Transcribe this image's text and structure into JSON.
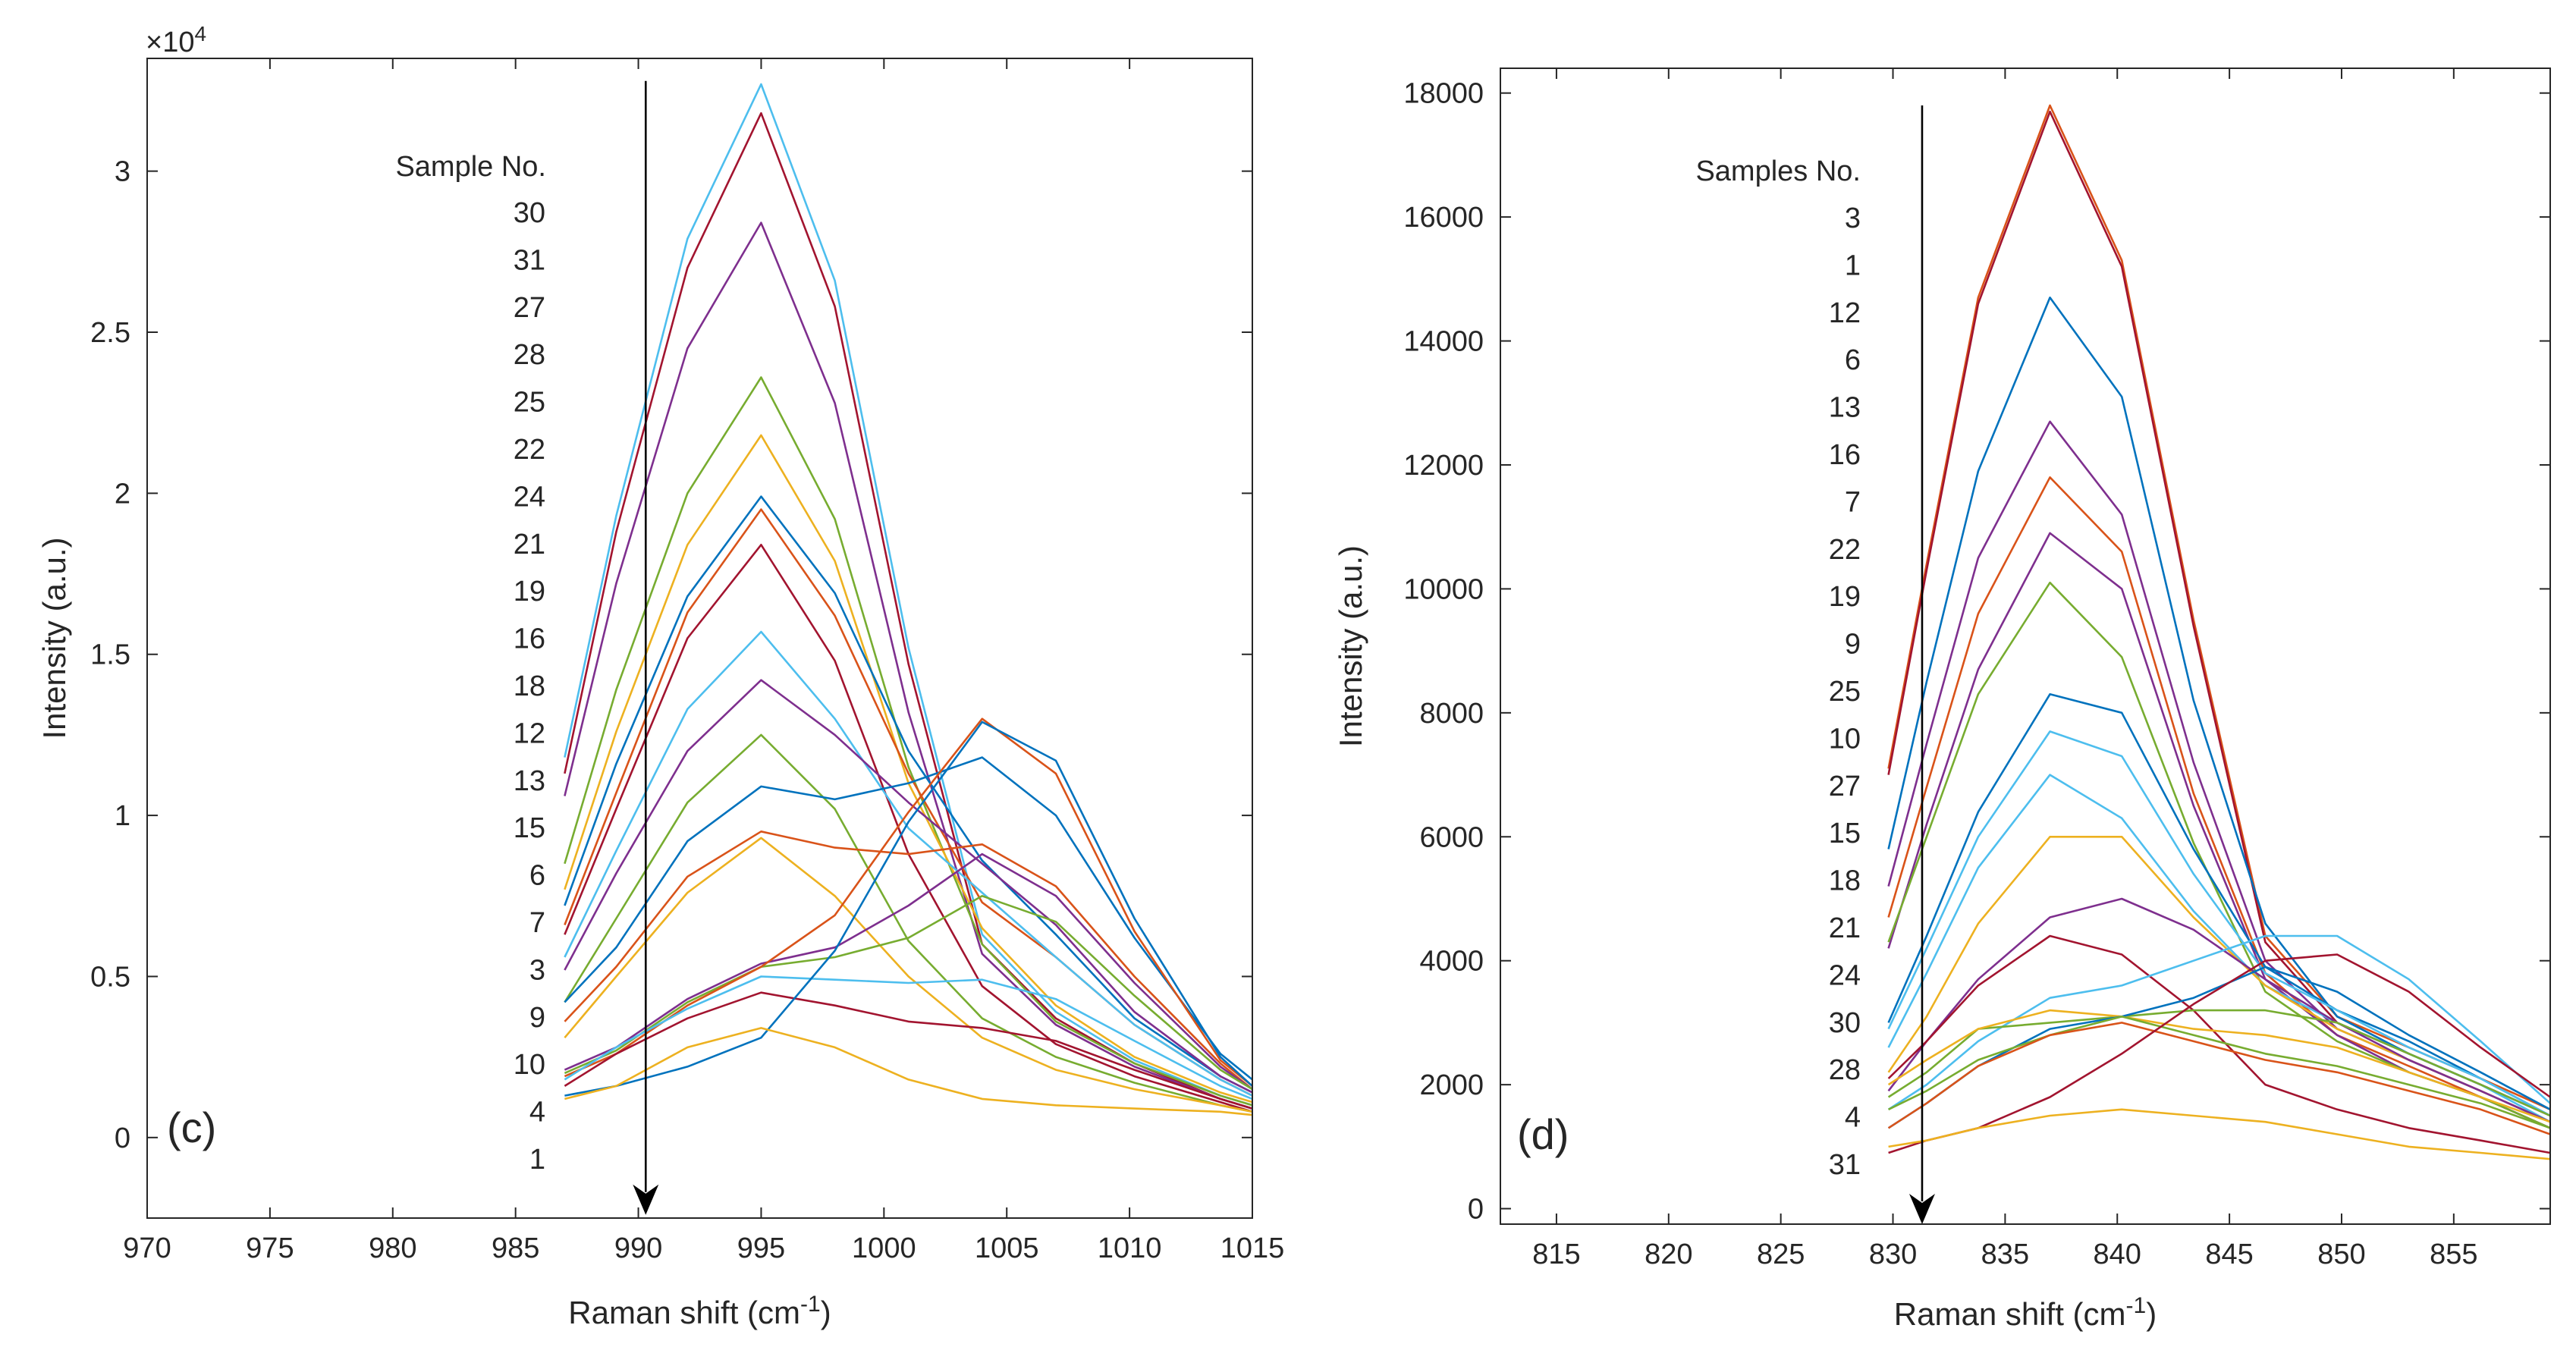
{
  "colors": [
    "#0072BD",
    "#D95319",
    "#EDB120",
    "#7E2F8E",
    "#77AC30",
    "#4DBEEE",
    "#A2142F"
  ],
  "chart_data": [
    {
      "panel_label": "(c)",
      "type": "line",
      "title": "",
      "xlabel_main": "Raman shift (cm",
      "xlabel_sup": "-1",
      "xlabel_close": ")",
      "ylabel": "Intensity (a.u.)",
      "y_exponent_prefix": "×10",
      "y_exponent_power": "4",
      "xlim": [
        970,
        1015
      ],
      "ylim": [
        -2500,
        33500
      ],
      "xticks": [
        970,
        975,
        980,
        985,
        990,
        995,
        1000,
        1005,
        1010,
        1015
      ],
      "xtick_labels": [
        "970",
        "975",
        "980",
        "985",
        "990",
        "995",
        "1000",
        "1005",
        "1010",
        "1015"
      ],
      "yticks": [
        0,
        5000,
        10000,
        15000,
        20000,
        25000,
        30000
      ],
      "ytick_labels": [
        "0",
        "0.5",
        "1",
        "1.5",
        "2",
        "2.5",
        "3"
      ],
      "x": [
        987,
        989.1,
        992,
        995,
        998,
        1001,
        1004,
        1007,
        1010.2,
        1013.7,
        1015
      ],
      "arrow": {
        "x": 990.3,
        "y_start": 32800,
        "y_end": -2400
      },
      "legend_title": "Sample No.",
      "legend_entries": [
        "30",
        "31",
        "27",
        "28",
        "25",
        "22",
        "24",
        "21",
        "19",
        "16",
        "18",
        "12",
        "13",
        "15",
        "6",
        "7",
        "3",
        "9",
        "10",
        "4",
        "1"
      ],
      "series": [
        {
          "name": "30",
          "color": "#4DBEEE",
          "values": [
            11800,
            19300,
            27900,
            32700,
            26600,
            15200,
            6300,
            3900,
            2400,
            1300,
            1000
          ]
        },
        {
          "name": "31",
          "color": "#A2142F",
          "values": [
            11300,
            18800,
            27000,
            31800,
            25800,
            14700,
            6000,
            3700,
            2300,
            1200,
            900
          ]
        },
        {
          "name": "27",
          "color": "#7E2F8E",
          "values": [
            10600,
            17200,
            24500,
            28400,
            22800,
            13200,
            5700,
            3500,
            2200,
            1200,
            900
          ]
        },
        {
          "name": "28",
          "color": "#77AC30",
          "values": [
            8500,
            13900,
            20000,
            23600,
            19200,
            11500,
            6000,
            3600,
            2300,
            1300,
            1000
          ]
        },
        {
          "name": "25",
          "color": "#EDB120",
          "values": [
            7700,
            12600,
            18400,
            21800,
            17900,
            11000,
            6500,
            4100,
            2500,
            1400,
            1100
          ]
        },
        {
          "name": "22",
          "color": "#0072BD",
          "values": [
            7200,
            11600,
            16800,
            19900,
            16900,
            12000,
            8600,
            6300,
            3700,
            1900,
            1400
          ]
        },
        {
          "name": "24",
          "color": "#D95319",
          "values": [
            6600,
            10700,
            16300,
            19500,
            16200,
            11300,
            7300,
            5600,
            3500,
            1800,
            1300
          ]
        },
        {
          "name": "21",
          "color": "#A2142F",
          "values": [
            6300,
            10200,
            15500,
            18400,
            14800,
            8800,
            4700,
            2900,
            1900,
            1100,
            800
          ]
        },
        {
          "name": "19",
          "color": "#4DBEEE",
          "values": [
            5600,
            8900,
            13300,
            15700,
            13000,
            9600,
            7600,
            5600,
            3500,
            1800,
            1300
          ]
        },
        {
          "name": "16",
          "color": "#7E2F8E",
          "values": [
            5200,
            8200,
            12000,
            14200,
            12500,
            10400,
            8500,
            6600,
            3900,
            1900,
            1400
          ]
        },
        {
          "name": "18",
          "color": "#77AC30",
          "values": [
            4200,
            6800,
            10400,
            12500,
            10200,
            6100,
            3700,
            2500,
            1700,
            1000,
            800
          ]
        },
        {
          "name": "12",
          "color": "#0072BD",
          "values": [
            4200,
            5900,
            9200,
            10900,
            10500,
            11000,
            11800,
            10000,
            6200,
            2600,
            1800
          ]
        },
        {
          "name": "13",
          "color": "#D95319",
          "values": [
            3600,
            5300,
            8100,
            9500,
            9000,
            8800,
            9100,
            7800,
            5000,
            2300,
            1500
          ]
        },
        {
          "name": "15",
          "color": "#EDB120",
          "values": [
            3100,
            5000,
            7600,
            9300,
            7500,
            5000,
            3100,
            2100,
            1500,
            1000,
            800
          ]
        },
        {
          "name": "6",
          "color": "#7E2F8E",
          "values": [
            2100,
            2800,
            4300,
            5400,
            5900,
            7200,
            8800,
            7500,
            4800,
            2200,
            1500
          ]
        },
        {
          "name": "7",
          "color": "#77AC30",
          "values": [
            2000,
            2700,
            4200,
            5300,
            5600,
            6200,
            7500,
            6700,
            4400,
            2100,
            1500
          ]
        },
        {
          "name": "3",
          "color": "#D95319",
          "values": [
            1900,
            2600,
            4100,
            5300,
            6900,
            10100,
            13000,
            11300,
            6400,
            2400,
            1600
          ]
        },
        {
          "name": "9",
          "color": "#4DBEEE",
          "values": [
            1800,
            2800,
            4000,
            5000,
            4900,
            4800,
            4900,
            4300,
            3000,
            1600,
            1200
          ]
        },
        {
          "name": "10",
          "color": "#A2142F",
          "values": [
            1600,
            2600,
            3700,
            4500,
            4100,
            3600,
            3400,
            3000,
            2100,
            1200,
            900
          ]
        },
        {
          "name": "4",
          "color": "#0072BD",
          "values": [
            1300,
            1600,
            2200,
            3100,
            5800,
            9800,
            12900,
            11700,
            6800,
            2500,
            1600
          ]
        },
        {
          "name": "1",
          "color": "#EDB120",
          "values": [
            1200,
            1600,
            2800,
            3400,
            2800,
            1800,
            1200,
            1000,
            900,
            800,
            700
          ]
        }
      ]
    },
    {
      "panel_label": "(d)",
      "type": "line",
      "title": "",
      "xlabel_main": "Raman shift (cm",
      "xlabel_sup": "-1",
      "xlabel_close": ")",
      "ylabel": "Intensity (a.u.)",
      "xlim": [
        812.5,
        859.3
      ],
      "ylim": [
        -250,
        18400
      ],
      "xticks": [
        815,
        820,
        825,
        830,
        835,
        840,
        845,
        850,
        855
      ],
      "xtick_labels": [
        "815",
        "820",
        "825",
        "830",
        "835",
        "840",
        "845",
        "850",
        "855"
      ],
      "yticks": [
        0,
        2000,
        4000,
        6000,
        8000,
        10000,
        12000,
        14000,
        16000,
        18000
      ],
      "ytick_labels": [
        "0",
        "2000",
        "4000",
        "6000",
        "8000",
        "10000",
        "12000",
        "14000",
        "16000",
        "18000"
      ],
      "x": [
        829.8,
        831.5,
        833.8,
        837,
        840.2,
        843.4,
        846.6,
        849.8,
        853,
        856.2,
        859.3
      ],
      "arrow": {
        "x": 831.3,
        "y_start": 17800,
        "y_end": -250
      },
      "legend_title": "Samples No.",
      "legend_entries": [
        "3",
        "1",
        "12",
        "6",
        "13",
        "16",
        "7",
        "22",
        "19",
        "9",
        "25",
        "10",
        "27",
        "15",
        "18",
        "21",
        "24",
        "30",
        "28",
        "4",
        "31"
      ],
      "series": [
        {
          "name": "3",
          "color": "#D95319",
          "values": [
            7100,
            10400,
            14700,
            17800,
            15300,
            9500,
            4400,
            3100,
            2600,
            2100,
            1600
          ]
        },
        {
          "name": "1",
          "color": "#A2142F",
          "values": [
            7000,
            10300,
            14600,
            17700,
            15200,
            9400,
            4300,
            3000,
            2500,
            2000,
            1500
          ]
        },
        {
          "name": "12",
          "color": "#0072BD",
          "values": [
            5800,
            8500,
            11900,
            14700,
            13100,
            8200,
            4600,
            3100,
            2500,
            2000,
            1500
          ]
        },
        {
          "name": "6",
          "color": "#7E2F8E",
          "values": [
            5200,
            7500,
            10500,
            12700,
            11200,
            7200,
            4000,
            2900,
            2400,
            1900,
            1400
          ]
        },
        {
          "name": "13",
          "color": "#D95319",
          "values": [
            4700,
            6800,
            9600,
            11800,
            10600,
            6700,
            3800,
            2800,
            2300,
            1800,
            1300
          ]
        },
        {
          "name": "16",
          "color": "#7E2F8E",
          "values": [
            4200,
            6200,
            8700,
            10900,
            10000,
            6500,
            3700,
            2800,
            2200,
            1800,
            1300
          ]
        },
        {
          "name": "7",
          "color": "#77AC30",
          "values": [
            4300,
            6000,
            8300,
            10100,
            8900,
            5900,
            3500,
            2700,
            2200,
            1800,
            1300
          ]
        },
        {
          "name": "22",
          "color": "#0072BD",
          "values": [
            3000,
            4400,
            6400,
            8300,
            8000,
            5800,
            3900,
            3200,
            2700,
            2100,
            1500
          ]
        },
        {
          "name": "19",
          "color": "#4DBEEE",
          "values": [
            2900,
            4200,
            6000,
            7700,
            7300,
            5400,
            3800,
            3200,
            2600,
            2100,
            1500
          ]
        },
        {
          "name": "9",
          "color": "#4DBEEE",
          "values": [
            2600,
            3800,
            5500,
            7000,
            6300,
            4800,
            3600,
            3000,
            2500,
            2000,
            1400
          ]
        },
        {
          "name": "25",
          "color": "#EDB120",
          "values": [
            2200,
            3100,
            4600,
            6000,
            6000,
            4700,
            3600,
            2900,
            2400,
            1900,
            1400
          ]
        },
        {
          "name": "10",
          "color": "#7E2F8E",
          "values": [
            1900,
            2700,
            3700,
            4700,
            5000,
            4500,
            3700,
            3000,
            2400,
            1900,
            1400
          ]
        },
        {
          "name": "27",
          "color": "#A2142F",
          "values": [
            2100,
            2700,
            3600,
            4400,
            4100,
            3200,
            2000,
            1600,
            1300,
            1100,
            900
          ]
        },
        {
          "name": "15",
          "color": "#4DBEEE",
          "values": [
            1600,
            2000,
            2700,
            3400,
            3600,
            4000,
            4400,
            4400,
            3700,
            2700,
            1700
          ]
        },
        {
          "name": "18",
          "color": "#77AC30",
          "values": [
            1800,
            2200,
            2900,
            3000,
            3100,
            3200,
            3200,
            3000,
            2500,
            2000,
            1500
          ]
        },
        {
          "name": "21",
          "color": "#EDB120",
          "values": [
            2000,
            2400,
            2900,
            3200,
            3100,
            2900,
            2800,
            2600,
            2200,
            1800,
            1400
          ]
        },
        {
          "name": "24",
          "color": "#0072BD",
          "values": [
            1300,
            1700,
            2300,
            2900,
            3100,
            3400,
            3900,
            3500,
            2800,
            2200,
            1600
          ]
        },
        {
          "name": "30",
          "color": "#77AC30",
          "values": [
            1600,
            1900,
            2400,
            2800,
            3100,
            2800,
            2500,
            2300,
            2000,
            1700,
            1300
          ]
        },
        {
          "name": "28",
          "color": "#D95319",
          "values": [
            1300,
            1700,
            2300,
            2800,
            3000,
            2700,
            2400,
            2200,
            1900,
            1600,
            1200
          ]
        },
        {
          "name": "4",
          "color": "#A2142F",
          "values": [
            900,
            1100,
            1300,
            1800,
            2500,
            3300,
            4000,
            4100,
            3500,
            2600,
            1800
          ]
        },
        {
          "name": "31",
          "color": "#EDB120",
          "values": [
            1000,
            1100,
            1300,
            1500,
            1600,
            1500,
            1400,
            1200,
            1000,
            900,
            800
          ]
        }
      ]
    }
  ]
}
